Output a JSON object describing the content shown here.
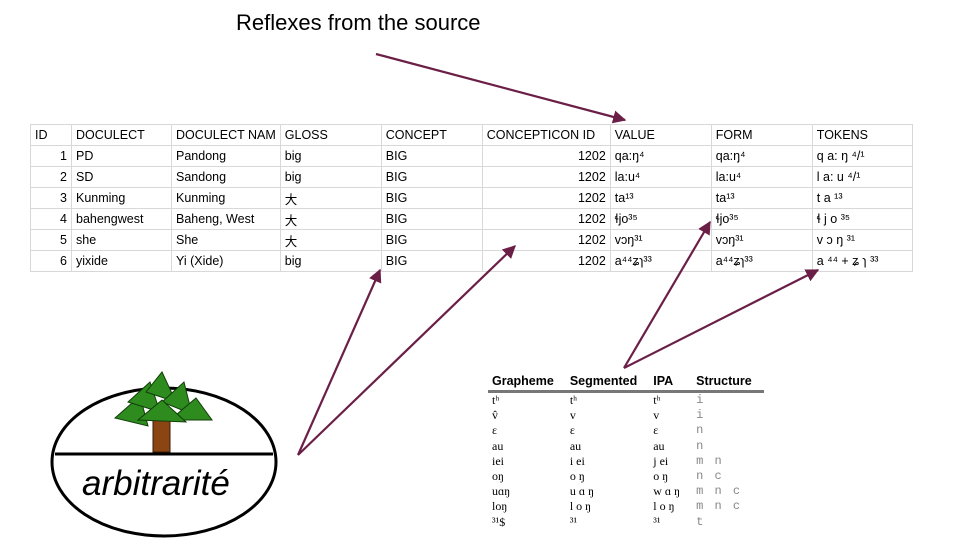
{
  "title": "Reflexes from the source",
  "sheet": {
    "columns": [
      "ID",
      "DOCULECT",
      "DOCULECT NAM",
      "GLOSS",
      "CONCEPT",
      "CONCEPTICON ID",
      "VALUE",
      "FORM",
      "TOKENS"
    ],
    "rows": [
      [
        "1",
        "PD",
        "Pandong",
        "big",
        "BIG",
        "1202",
        "qa:ŋ⁴",
        "qa:ŋ⁴",
        "q a: ŋ ⁴/¹"
      ],
      [
        "2",
        "SD",
        "Sandong",
        "big",
        "BIG",
        "1202",
        "la:u⁴",
        "la:u⁴",
        "l a: u ⁴/¹"
      ],
      [
        "3",
        "Kunming",
        "Kunming",
        "大",
        "BIG",
        "1202",
        "ta¹³",
        "ta¹³",
        "t a ¹³"
      ],
      [
        "4",
        "bahengwest",
        "Baheng, West",
        "大",
        "BIG",
        "1202",
        "ɬjo³⁵",
        "ɬjo³⁵",
        "ɬ j o ³⁵"
      ],
      [
        "5",
        "she",
        "She",
        "大",
        "BIG",
        "1202",
        "vɔŋ³¹",
        "vɔŋ³¹",
        "v ɔ ŋ ³¹"
      ],
      [
        "6",
        "yixide",
        "Yi (Xide)",
        "big",
        "BIG",
        "1202",
        "a⁴⁴ʑɿ³³",
        "a⁴⁴ʑɿ³³",
        "a ⁴⁴ + ʑ ɿ ³³"
      ]
    ]
  },
  "profile": {
    "headers": [
      "Grapheme",
      "Segmented",
      "IPA",
      "Structure"
    ],
    "rows": [
      [
        "tʰ",
        "tʰ",
        "tʰ",
        "i"
      ],
      [
        "v̂",
        "v",
        "v",
        "i"
      ],
      [
        "ɛ",
        "ɛ",
        "ɛ",
        "n"
      ],
      [
        "au",
        "au",
        "au",
        "n"
      ],
      [
        "iei",
        "i ei",
        "j ei",
        "m n"
      ],
      [
        "oŋ",
        "o ŋ",
        "o ŋ",
        "n c"
      ],
      [
        "uɑŋ",
        "u ɑ ŋ",
        "w ɑ ŋ",
        "m n c"
      ],
      [
        "loŋ",
        "l o ŋ",
        "l o ŋ",
        "m n c"
      ],
      [
        "³¹$",
        "³¹",
        "³¹",
        "t"
      ]
    ]
  },
  "logo": {
    "text": "arbitrarité"
  },
  "colors": {
    "arrow": "#6b1f47",
    "leaf": "#2e8b1e",
    "trunk": "#8b4513"
  }
}
